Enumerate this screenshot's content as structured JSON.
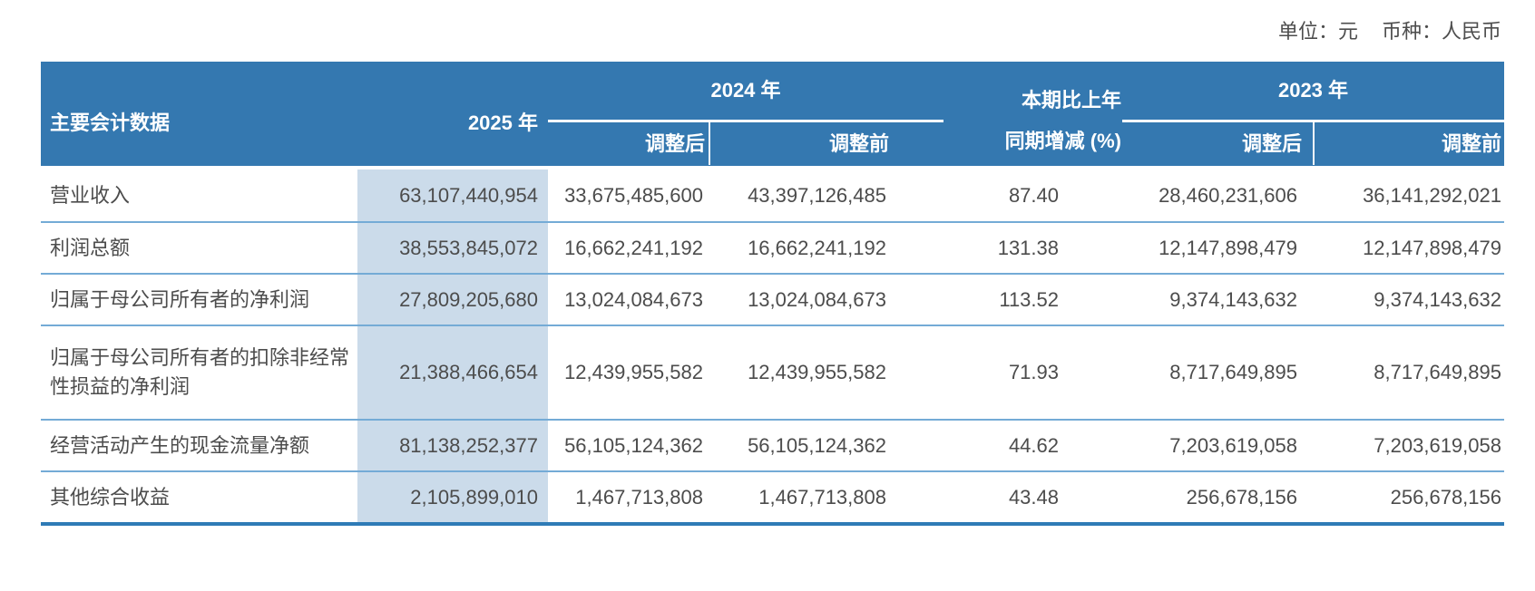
{
  "meta": {
    "unit_label": "单位：元",
    "currency_label": "币种：人民币"
  },
  "table": {
    "header": {
      "main": "主要会计数据",
      "y2025": "2025 年",
      "group_2024": {
        "label": "2024 年",
        "after": "调整后",
        "before": "调整前"
      },
      "change": {
        "line1": "本期比上年",
        "line2": "同期增减 (%)"
      },
      "group_2023": {
        "label": "2023 年",
        "after": "调整后",
        "before": "调整前"
      }
    },
    "rows": [
      {
        "label": "营业收入",
        "y2025": "63,107,440,954",
        "y2024_adjusted": "33,675,485,600",
        "y2024_original": "43,397,126,485",
        "change_pct": "87.40",
        "y2023_adjusted": "28,460,231,606",
        "y2023_original": "36,141,292,021"
      },
      {
        "label": "利润总额",
        "y2025": "38,553,845,072",
        "y2024_adjusted": "16,662,241,192",
        "y2024_original": "16,662,241,192",
        "change_pct": "131.38",
        "y2023_adjusted": "12,147,898,479",
        "y2023_original": "12,147,898,479"
      },
      {
        "label": "归属于母公司所有者的净利润",
        "y2025": "27,809,205,680",
        "y2024_adjusted": "13,024,084,673",
        "y2024_original": "13,024,084,673",
        "change_pct": "113.52",
        "y2023_adjusted": "9,374,143,632",
        "y2023_original": "9,374,143,632"
      },
      {
        "label": "归属于母公司所有者的扣除非经常性损益的净利润",
        "y2025": "21,388,466,654",
        "y2024_adjusted": "12,439,955,582",
        "y2024_original": "12,439,955,582",
        "change_pct": "71.93",
        "y2023_adjusted": "8,717,649,895",
        "y2023_original": "8,717,649,895"
      },
      {
        "label": "经营活动产生的现金流量净额",
        "y2025": "81,138,252,377",
        "y2024_adjusted": "56,105,124,362",
        "y2024_original": "56,105,124,362",
        "change_pct": "44.62",
        "y2023_adjusted": "7,203,619,058",
        "y2023_original": "7,203,619,058"
      },
      {
        "label": "其他综合收益",
        "y2025": "2,105,899,010",
        "y2024_adjusted": "1,467,713,808",
        "y2024_original": "1,467,713,808",
        "change_pct": "43.48",
        "y2023_adjusted": "256,678,156",
        "y2023_original": "256,678,156"
      }
    ]
  },
  "colors": {
    "header_bg": "#3478B0",
    "header_text": "#FFFFFF",
    "highlight_bg": "#CBDBEA",
    "row_divider": "#74ABD6",
    "bottom_border": "#2E7BB6",
    "body_text": "#4C4C4C"
  }
}
